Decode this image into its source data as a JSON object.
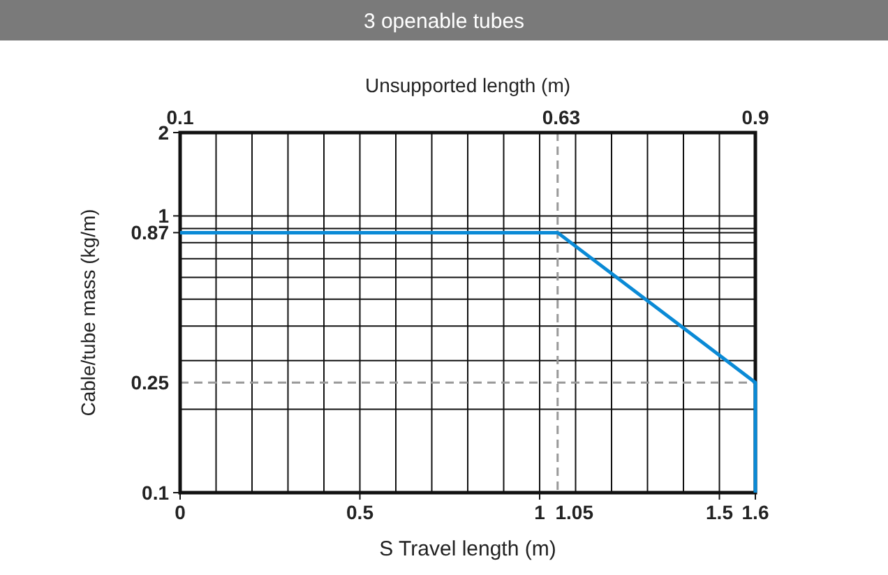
{
  "chart_data": {
    "type": "line",
    "title": "3 openable tubes",
    "xlabel": "S Travel length (m)",
    "ylabel": "Cable/tube mass (kg/m)",
    "x2label": "Unsupported length (m)",
    "log": "y",
    "grid": true,
    "line_style": "solid",
    "marker": "none",
    "xlim": [
      0,
      1.6
    ],
    "xticks": [
      0,
      {
        "value": 0.1,
        "label": null
      },
      {
        "value": 0.2,
        "label": null
      },
      {
        "value": 0.3,
        "label": null
      },
      {
        "value": 0.4,
        "label": null
      },
      0.5,
      {
        "value": 0.6,
        "label": null
      },
      {
        "value": 0.7,
        "label": null
      },
      {
        "value": 0.8,
        "label": null
      },
      {
        "value": 0.9,
        "label": null
      },
      1,
      {
        "value": 1.1,
        "label": null
      },
      {
        "value": 1.2,
        "label": null
      },
      {
        "value": 1.3,
        "label": null
      },
      {
        "value": 1.4,
        "label": null
      },
      1.5,
      1.6
    ],
    "x2lim": [
      0.1,
      0.9
    ],
    "x2ticks": [
      0.1,
      0.63,
      0.9
    ],
    "ylim": [
      0.1,
      2
    ],
    "yticks": [
      0.1,
      {
        "value": 0.2,
        "label": null
      },
      {
        "value": 0.3,
        "label": null
      },
      {
        "value": 0.4,
        "label": null
      },
      {
        "value": 0.5,
        "label": null
      },
      {
        "value": 0.6,
        "label": null
      },
      {
        "value": 0.7,
        "label": null
      },
      {
        "value": 0.8,
        "label": null
      },
      {
        "value": 0.9,
        "label": null
      },
      0.87,
      1,
      2
    ],
    "x": [
      0,
      1.05,
      1.6,
      1.6
    ],
    "series": [
      {
        "color": "#0a8ad6",
        "values": [
          0.87,
          0.87,
          0.25,
          0.1
        ]
      }
    ],
    "ref_lines": [
      {
        "axis": "x",
        "value": 1.05,
        "label": "1.05",
        "color": "#999999",
        "line_style": "dashed"
      },
      {
        "axis": "y",
        "value": 0.25,
        "label": "0.25",
        "color": "#999999",
        "line_style": "dashed"
      }
    ]
  }
}
